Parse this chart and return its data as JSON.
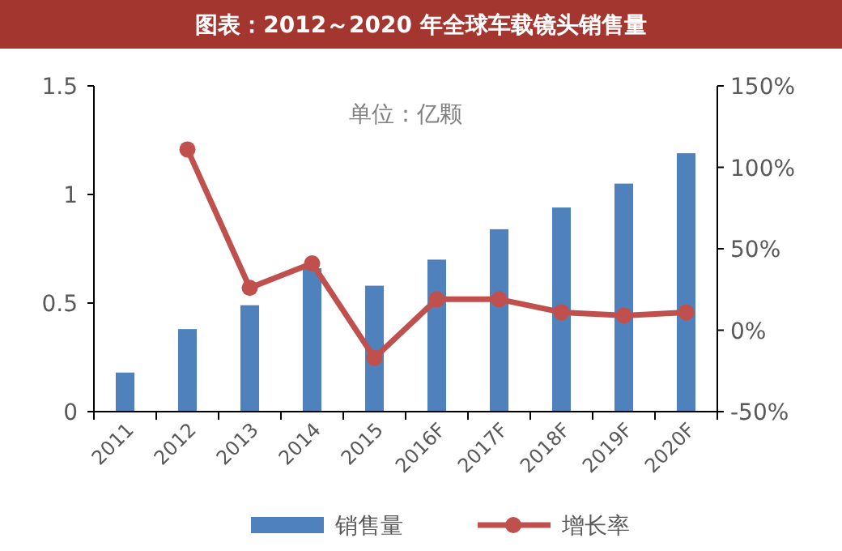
{
  "chart_data": {
    "type": "bar",
    "title": "图表：2012～2020 年全球车载镜头销售量",
    "annotations": [
      "单位：亿颗"
    ],
    "categories": [
      "2011",
      "2012",
      "2013",
      "2014",
      "2015",
      "2016F",
      "2017F",
      "2018F",
      "2019F",
      "2020F"
    ],
    "series": [
      {
        "name": "销售量",
        "color": "#4f81bd",
        "values": [
          0.18,
          0.38,
          0.49,
          0.66,
          0.58,
          0.7,
          0.84,
          0.94,
          1.05,
          1.19
        ]
      },
      {
        "name": "增长率",
        "type": "line",
        "axis": "y2",
        "color": "#c0504d",
        "marker": "circle",
        "values": [
          null,
          111,
          26,
          41,
          -17,
          19,
          19,
          11,
          9,
          11
        ]
      }
    ],
    "ylim": [
      0,
      1.5
    ],
    "yticks": [
      0,
      0.5,
      1,
      1.5
    ],
    "y2lim": [
      -50,
      150
    ],
    "y2ticks": [
      {
        "value": -50,
        "label": "-50%"
      },
      {
        "value": 0,
        "label": "0%"
      },
      {
        "value": 50,
        "label": "50%"
      },
      {
        "value": 100,
        "label": "100%"
      },
      {
        "value": 150,
        "label": "150%"
      }
    ],
    "grid": false,
    "legend": "bottom"
  }
}
